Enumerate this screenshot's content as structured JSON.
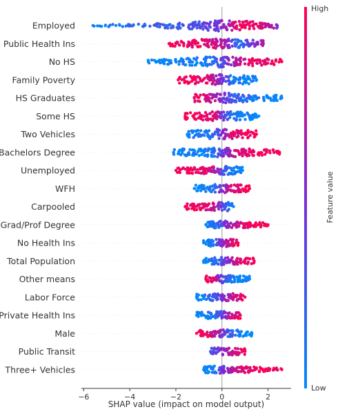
{
  "chart_data": {
    "type": "scatter",
    "subtype": "shap-beeswarm",
    "xlabel": "SHAP value (impact on model output)",
    "xlim": [
      -6.1,
      3.0
    ],
    "xticks": [
      -6,
      -4,
      -2,
      0,
      2
    ],
    "colorbar": {
      "label": "Feature value",
      "high": "High",
      "low": "Low",
      "colors": {
        "low": "#008afb",
        "mid": "#7c2ad8",
        "high": "#ff0052"
      }
    },
    "features": [
      {
        "name": "Employed",
        "spread": 0.5,
        "pts": [
          [
            -5.6,
            0
          ],
          [
            -5.3,
            0
          ],
          [
            -5.0,
            0.1
          ],
          [
            -4.7,
            0.1
          ],
          [
            -4.4,
            0.1
          ],
          [
            -4.0,
            0.25
          ],
          [
            -3.6,
            0.2
          ],
          [
            -3.2,
            0.2
          ],
          [
            -2.8,
            0.2
          ],
          [
            -2.4,
            0.2
          ],
          [
            -2.0,
            0.25
          ],
          [
            -1.6,
            0.3
          ],
          [
            -1.1,
            0.3
          ],
          [
            -0.6,
            0.4
          ],
          [
            -0.2,
            0.45
          ],
          [
            0.2,
            0.6
          ],
          [
            0.5,
            0.8
          ],
          [
            0.8,
            0.95
          ],
          [
            1.1,
            0.95
          ],
          [
            1.4,
            0.9
          ],
          [
            1.8,
            0.85
          ],
          [
            2.1,
            0.7
          ],
          [
            2.4,
            0.5
          ]
        ]
      },
      {
        "name": "Public Health Ins",
        "spread": 0.45,
        "pts": [
          [
            -2.3,
            1
          ],
          [
            -1.8,
            1
          ],
          [
            -1.4,
            0.95
          ],
          [
            -0.9,
            0.9
          ],
          [
            -0.4,
            0.85
          ],
          [
            0.1,
            0.7
          ],
          [
            0.4,
            0.4
          ],
          [
            0.6,
            0.2
          ],
          [
            0.8,
            0.15
          ],
          [
            1.1,
            0.3
          ],
          [
            1.4,
            0.5
          ],
          [
            1.6,
            0.6
          ],
          [
            1.8,
            0.7
          ]
        ]
      },
      {
        "name": "No HS",
        "spread": 0.5,
        "pts": [
          [
            -3.2,
            0
          ],
          [
            -2.8,
            0
          ],
          [
            -1.8,
            0.05
          ],
          [
            -1.4,
            0.05
          ],
          [
            -1.0,
            0.05
          ],
          [
            -0.7,
            0.1
          ],
          [
            -0.4,
            0.15
          ],
          [
            -0.2,
            0.2
          ],
          [
            0.0,
            0.35
          ],
          [
            0.2,
            0.45
          ],
          [
            0.4,
            0.6
          ],
          [
            0.7,
            0.7
          ],
          [
            1.0,
            0.85
          ],
          [
            1.4,
            0.9
          ],
          [
            1.8,
            0.95
          ],
          [
            2.3,
            1
          ],
          [
            2.6,
            1
          ]
        ]
      },
      {
        "name": "Family Poverty",
        "spread": 0.5,
        "pts": [
          [
            -1.9,
            1
          ],
          [
            -1.5,
            1
          ],
          [
            -1.2,
            0.95
          ],
          [
            -0.8,
            0.9
          ],
          [
            -0.4,
            0.75
          ],
          [
            -0.1,
            0.6
          ],
          [
            0.2,
            0.3
          ],
          [
            0.4,
            0.15
          ],
          [
            0.6,
            0.05
          ],
          [
            0.8,
            0.05
          ],
          [
            1.1,
            0.0
          ],
          [
            1.5,
            0.0
          ]
        ]
      },
      {
        "name": "HS Graduates",
        "spread": 0.45,
        "pts": [
          [
            -1.2,
            0.95
          ],
          [
            -0.9,
            0.9
          ],
          [
            -0.6,
            0.8
          ],
          [
            -0.3,
            0.7
          ],
          [
            0.0,
            0.5
          ],
          [
            0.3,
            0.35
          ],
          [
            0.5,
            0.25
          ],
          [
            0.8,
            0.2
          ],
          [
            1.1,
            0.1
          ],
          [
            1.4,
            0.05
          ],
          [
            2.6,
            0
          ]
        ]
      },
      {
        "name": "Some HS",
        "spread": 0.45,
        "pts": [
          [
            -1.6,
            1
          ],
          [
            -1.3,
            1
          ],
          [
            -0.9,
            0.95
          ],
          [
            -0.6,
            0.9
          ],
          [
            -0.3,
            0.8
          ],
          [
            -0.1,
            0.6
          ],
          [
            0.1,
            0.3
          ],
          [
            0.4,
            0.1
          ],
          [
            0.7,
            0.05
          ],
          [
            1.0,
            0.0
          ],
          [
            1.3,
            0.0
          ],
          [
            1.6,
            0
          ]
        ]
      },
      {
        "name": "Two Vehicles",
        "spread": 0.45,
        "pts": [
          [
            -1.5,
            0
          ],
          [
            -1.2,
            0
          ],
          [
            -0.9,
            0.05
          ],
          [
            -0.6,
            0.1
          ],
          [
            -0.3,
            0.2
          ],
          [
            0.0,
            0.5
          ],
          [
            0.3,
            0.8
          ],
          [
            0.6,
            0.9
          ],
          [
            0.9,
            0.95
          ],
          [
            1.2,
            1
          ],
          [
            1.5,
            1
          ]
        ]
      },
      {
        "name": "Bachelors Degree",
        "spread": 0.45,
        "pts": [
          [
            -2.1,
            0
          ],
          [
            -1.7,
            0
          ],
          [
            -0.8,
            0.05
          ],
          [
            -0.5,
            0.1
          ],
          [
            -0.2,
            0.2
          ],
          [
            0.0,
            0.4
          ],
          [
            0.3,
            0.6
          ],
          [
            0.6,
            0.8
          ],
          [
            0.9,
            0.9
          ],
          [
            1.3,
            0.95
          ],
          [
            1.7,
            1
          ],
          [
            2.0,
            1
          ],
          [
            2.5,
            1
          ]
        ]
      },
      {
        "name": "Unemployed",
        "spread": 0.4,
        "pts": [
          [
            -2.0,
            1
          ],
          [
            -1.7,
            1
          ],
          [
            -1.4,
            0.95
          ],
          [
            -1.1,
            0.95
          ],
          [
            -0.8,
            0.9
          ],
          [
            -0.5,
            0.8
          ],
          [
            -0.2,
            0.6
          ],
          [
            0.1,
            0.3
          ],
          [
            0.3,
            0.15
          ],
          [
            0.6,
            0.05
          ],
          [
            0.9,
            0
          ]
        ]
      },
      {
        "name": "WFH",
        "spread": 0.4,
        "pts": [
          [
            -1.2,
            0
          ],
          [
            -0.9,
            0.05
          ],
          [
            -0.6,
            0.1
          ],
          [
            -0.3,
            0.2
          ],
          [
            0.0,
            0.5
          ],
          [
            0.3,
            0.75
          ],
          [
            0.6,
            0.9
          ],
          [
            0.9,
            0.95
          ],
          [
            1.2,
            1
          ]
        ]
      },
      {
        "name": "Carpooled",
        "spread": 0.4,
        "pts": [
          [
            -1.6,
            1
          ],
          [
            -1.3,
            1
          ],
          [
            -1.0,
            0.95
          ],
          [
            -0.7,
            0.9
          ],
          [
            -0.4,
            0.75
          ],
          [
            -0.1,
            0.5
          ],
          [
            0.1,
            0.3
          ],
          [
            0.3,
            0.15
          ],
          [
            0.5,
            0.05
          ]
        ]
      },
      {
        "name": "Grad/Prof Degree",
        "spread": 0.35,
        "pts": [
          [
            -0.7,
            0.05
          ],
          [
            -0.4,
            0.1
          ],
          [
            -0.1,
            0.25
          ],
          [
            0.2,
            0.5
          ],
          [
            0.5,
            0.7
          ],
          [
            0.8,
            0.85
          ],
          [
            1.1,
            0.95
          ],
          [
            1.4,
            1
          ],
          [
            1.7,
            1
          ],
          [
            2.0,
            1
          ]
        ]
      },
      {
        "name": "No Health Ins",
        "spread": 0.35,
        "pts": [
          [
            -0.8,
            0
          ],
          [
            -0.5,
            0.1
          ],
          [
            -0.2,
            0.3
          ],
          [
            0.0,
            0.5
          ],
          [
            0.2,
            0.7
          ],
          [
            0.4,
            0.85
          ],
          [
            0.7,
            0.95
          ]
        ]
      },
      {
        "name": "Total Population",
        "spread": 0.35,
        "pts": [
          [
            -0.8,
            0
          ],
          [
            -0.5,
            0.05
          ],
          [
            -0.2,
            0.15
          ],
          [
            0.0,
            0.35
          ],
          [
            0.3,
            0.6
          ],
          [
            0.6,
            0.8
          ],
          [
            0.9,
            0.9
          ],
          [
            1.1,
            0.95
          ],
          [
            1.4,
            1
          ]
        ]
      },
      {
        "name": "Other means",
        "spread": 0.35,
        "pts": [
          [
            -0.7,
            1
          ],
          [
            -0.4,
            0.9
          ],
          [
            -0.2,
            0.7
          ],
          [
            0.0,
            0.4
          ],
          [
            0.2,
            0.2
          ],
          [
            0.5,
            0.05
          ],
          [
            0.8,
            0
          ],
          [
            1.2,
            0
          ]
        ]
      },
      {
        "name": "Labor Force",
        "spread": 0.35,
        "pts": [
          [
            -1.1,
            0
          ],
          [
            -0.8,
            0.05
          ],
          [
            -0.5,
            0.15
          ],
          [
            -0.2,
            0.3
          ],
          [
            0.0,
            0.5
          ],
          [
            0.2,
            0.6
          ],
          [
            0.5,
            0.8
          ],
          [
            0.8,
            0.9
          ],
          [
            1.0,
            0.95
          ]
        ]
      },
      {
        "name": "Private Health Ins",
        "spread": 0.35,
        "pts": [
          [
            -1.1,
            0
          ],
          [
            -0.7,
            0.05
          ],
          [
            -0.4,
            0.1
          ],
          [
            -0.1,
            0.3
          ],
          [
            0.1,
            0.5
          ],
          [
            0.3,
            0.7
          ],
          [
            0.6,
            0.85
          ],
          [
            0.8,
            0.95
          ]
        ]
      },
      {
        "name": "Male",
        "spread": 0.35,
        "pts": [
          [
            -1.1,
            1
          ],
          [
            -0.7,
            0.9
          ],
          [
            -0.4,
            0.8
          ],
          [
            -0.1,
            0.6
          ],
          [
            0.1,
            0.4
          ],
          [
            0.4,
            0.2
          ],
          [
            0.7,
            0.05
          ],
          [
            1.0,
            0
          ],
          [
            1.3,
            0
          ]
        ]
      },
      {
        "name": "Public Transit",
        "spread": 0.35,
        "pts": [
          [
            -0.5,
            0.3
          ],
          [
            -0.3,
            0.4
          ],
          [
            -0.1,
            0.5
          ],
          [
            0.1,
            0.6
          ],
          [
            0.3,
            0.7
          ],
          [
            0.5,
            0.8
          ],
          [
            0.8,
            0.9
          ],
          [
            1.0,
            0.95
          ]
        ]
      },
      {
        "name": "Three+ Vehicles",
        "spread": 0.35,
        "pts": [
          [
            -0.8,
            0
          ],
          [
            -0.5,
            0.05
          ],
          [
            -0.2,
            0.2
          ],
          [
            0.0,
            0.4
          ],
          [
            0.3,
            0.6
          ],
          [
            0.6,
            0.75
          ],
          [
            1.0,
            0.9
          ],
          [
            1.4,
            0.95
          ],
          [
            1.7,
            1
          ],
          [
            2.0,
            1
          ],
          [
            2.6,
            1
          ]
        ]
      }
    ]
  }
}
